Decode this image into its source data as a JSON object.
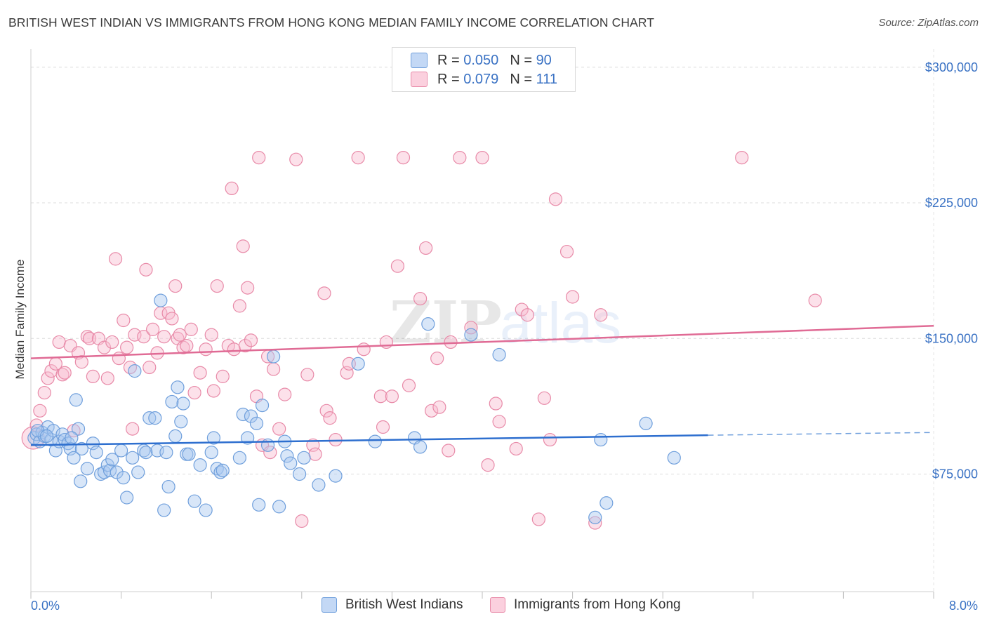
{
  "title": "BRITISH WEST INDIAN VS IMMIGRANTS FROM HONG KONG MEDIAN FAMILY INCOME CORRELATION CHART",
  "source": "Source: ZipAtlas.com",
  "watermark": {
    "part1": "ZIP",
    "part2": "atlas"
  },
  "legend_stats": [
    {
      "r_label": "R =",
      "r_value": "0.050",
      "n_label": "N =",
      "n_value": "90",
      "color": "#a9c8f0",
      "border": "#6f9fdc"
    },
    {
      "r_label": "R =",
      "r_value": "0.079",
      "n_label": "N =",
      "n_value": "111",
      "color": "#f8bcd0",
      "border": "#e88aa8"
    }
  ],
  "chart_data": {
    "type": "scatter",
    "title": "BRITISH WEST INDIAN VS IMMIGRANTS FROM HONG KONG MEDIAN FAMILY INCOME CORRELATION CHART",
    "xlabel": "",
    "ylabel": "Median Family Income",
    "xlim": [
      0,
      8
    ],
    "ylim": [
      10000,
      310000
    ],
    "x_tick_labels": [
      "0.0%",
      "8.0%"
    ],
    "y_ticks": [
      75000,
      150000,
      225000,
      300000
    ],
    "y_tick_labels": [
      "$75,000",
      "$150,000",
      "$225,000",
      "$300,000"
    ],
    "grid": true,
    "legend_placement": "bottom",
    "series": [
      {
        "name": "British West Indians",
        "color": "#6f9fdc",
        "fill": "#a9c8f0",
        "trend": {
          "x": [
            0,
            6.0
          ],
          "y": [
            91000,
            96500
          ],
          "dashed_to": [
            8.0,
            98000
          ]
        },
        "points": [
          [
            0.03,
            95000
          ],
          [
            0.05,
            97000
          ],
          [
            0.08,
            93000
          ],
          [
            0.1,
            98000
          ],
          [
            0.12,
            96000
          ],
          [
            0.15,
            101000
          ],
          [
            0.18,
            94000
          ],
          [
            0.2,
            99000
          ],
          [
            0.22,
            88000
          ],
          [
            0.25,
            93000
          ],
          [
            0.28,
            97000
          ],
          [
            0.3,
            94000
          ],
          [
            0.33,
            92000
          ],
          [
            0.35,
            89000
          ],
          [
            0.38,
            84000
          ],
          [
            0.4,
            116000
          ],
          [
            0.42,
            100000
          ],
          [
            0.45,
            89000
          ],
          [
            0.5,
            78000
          ],
          [
            0.55,
            92000
          ],
          [
            0.58,
            87000
          ],
          [
            0.62,
            75000
          ],
          [
            0.65,
            76000
          ],
          [
            0.68,
            80000
          ],
          [
            0.7,
            77000
          ],
          [
            0.72,
            83000
          ],
          [
            0.76,
            76000
          ],
          [
            0.8,
            88000
          ],
          [
            0.82,
            73000
          ],
          [
            0.85,
            62000
          ],
          [
            0.9,
            84000
          ],
          [
            0.92,
            132000
          ],
          [
            0.95,
            76000
          ],
          [
            1.0,
            88000
          ],
          [
            1.02,
            87000
          ],
          [
            1.05,
            106000
          ],
          [
            1.1,
            106000
          ],
          [
            1.12,
            88000
          ],
          [
            1.15,
            171000
          ],
          [
            1.18,
            55000
          ],
          [
            1.2,
            87000
          ],
          [
            1.22,
            68000
          ],
          [
            1.25,
            115000
          ],
          [
            1.28,
            96000
          ],
          [
            1.3,
            123000
          ],
          [
            1.33,
            104000
          ],
          [
            1.35,
            114000
          ],
          [
            1.38,
            86000
          ],
          [
            1.4,
            86000
          ],
          [
            1.45,
            60000
          ],
          [
            1.5,
            80000
          ],
          [
            1.55,
            55000
          ],
          [
            1.6,
            87000
          ],
          [
            1.62,
            95000
          ],
          [
            1.65,
            78000
          ],
          [
            1.68,
            76000
          ],
          [
            1.7,
            77000
          ],
          [
            1.85,
            84000
          ],
          [
            1.88,
            108000
          ],
          [
            1.92,
            95000
          ],
          [
            1.95,
            107000
          ],
          [
            2.0,
            103000
          ],
          [
            2.02,
            58000
          ],
          [
            2.05,
            113000
          ],
          [
            2.1,
            91000
          ],
          [
            2.15,
            140000
          ],
          [
            2.2,
            57000
          ],
          [
            2.25,
            93000
          ],
          [
            2.27,
            85000
          ],
          [
            2.3,
            81000
          ],
          [
            2.38,
            75000
          ],
          [
            2.42,
            84000
          ],
          [
            2.55,
            69000
          ],
          [
            2.7,
            74000
          ],
          [
            2.9,
            136000
          ],
          [
            3.05,
            93000
          ],
          [
            3.4,
            95000
          ],
          [
            3.45,
            90000
          ],
          [
            3.52,
            158000
          ],
          [
            3.9,
            152000
          ],
          [
            4.15,
            141000
          ],
          [
            5.0,
            51000
          ],
          [
            5.05,
            94000
          ],
          [
            5.1,
            59000
          ],
          [
            5.45,
            103000
          ],
          [
            5.7,
            84000
          ],
          [
            0.06,
            99000
          ],
          [
            0.14,
            96000
          ],
          [
            0.36,
            95000
          ],
          [
            0.44,
            71000
          ]
        ]
      },
      {
        "name": "Immigrants from Hong Kong",
        "color": "#e88aa8",
        "fill": "#f8bcd0",
        "trend": {
          "x": [
            0,
            8.0
          ],
          "y": [
            139000,
            157000
          ]
        },
        "points": [
          [
            0.02,
            95000
          ],
          [
            0.05,
            102000
          ],
          [
            0.08,
            110000
          ],
          [
            0.12,
            120000
          ],
          [
            0.15,
            128000
          ],
          [
            0.18,
            132000
          ],
          [
            0.22,
            136000
          ],
          [
            0.25,
            148000
          ],
          [
            0.28,
            130000
          ],
          [
            0.3,
            131000
          ],
          [
            0.35,
            146000
          ],
          [
            0.38,
            99000
          ],
          [
            0.42,
            142000
          ],
          [
            0.45,
            137000
          ],
          [
            0.5,
            151000
          ],
          [
            0.52,
            150000
          ],
          [
            0.55,
            129000
          ],
          [
            0.6,
            150000
          ],
          [
            0.65,
            145000
          ],
          [
            0.68,
            128000
          ],
          [
            0.72,
            148000
          ],
          [
            0.75,
            194000
          ],
          [
            0.78,
            139000
          ],
          [
            0.82,
            160000
          ],
          [
            0.85,
            145000
          ],
          [
            0.88,
            134000
          ],
          [
            0.9,
            100000
          ],
          [
            0.92,
            152000
          ],
          [
            1.0,
            151000
          ],
          [
            1.02,
            188000
          ],
          [
            1.05,
            134000
          ],
          [
            1.08,
            155000
          ],
          [
            1.12,
            142000
          ],
          [
            1.15,
            164000
          ],
          [
            1.18,
            151000
          ],
          [
            1.22,
            164000
          ],
          [
            1.25,
            161000
          ],
          [
            1.28,
            179000
          ],
          [
            1.3,
            150000
          ],
          [
            1.32,
            152000
          ],
          [
            1.35,
            145000
          ],
          [
            1.38,
            146000
          ],
          [
            1.42,
            155000
          ],
          [
            1.45,
            120000
          ],
          [
            1.5,
            131000
          ],
          [
            1.55,
            144000
          ],
          [
            1.6,
            152000
          ],
          [
            1.62,
            121000
          ],
          [
            1.65,
            179000
          ],
          [
            1.7,
            129000
          ],
          [
            1.75,
            146000
          ],
          [
            1.78,
            233000
          ],
          [
            1.8,
            144000
          ],
          [
            1.85,
            168000
          ],
          [
            1.88,
            201000
          ],
          [
            1.9,
            146000
          ],
          [
            1.92,
            178000
          ],
          [
            1.95,
            149000
          ],
          [
            2.0,
            118000
          ],
          [
            2.02,
            250000
          ],
          [
            2.05,
            91000
          ],
          [
            2.1,
            140000
          ],
          [
            2.12,
            87000
          ],
          [
            2.15,
            133000
          ],
          [
            2.2,
            100000
          ],
          [
            2.25,
            119000
          ],
          [
            2.35,
            249000
          ],
          [
            2.4,
            49000
          ],
          [
            2.45,
            130000
          ],
          [
            2.5,
            91000
          ],
          [
            2.52,
            86000
          ],
          [
            2.6,
            175000
          ],
          [
            2.62,
            110000
          ],
          [
            2.65,
            106000
          ],
          [
            2.7,
            94000
          ],
          [
            2.8,
            131000
          ],
          [
            2.82,
            136000
          ],
          [
            2.9,
            250000
          ],
          [
            2.95,
            144000
          ],
          [
            3.1,
            118000
          ],
          [
            3.12,
            101000
          ],
          [
            3.15,
            148000
          ],
          [
            3.2,
            118000
          ],
          [
            3.25,
            190000
          ],
          [
            3.3,
            250000
          ],
          [
            3.35,
            124000
          ],
          [
            3.45,
            172000
          ],
          [
            3.5,
            200000
          ],
          [
            3.55,
            110000
          ],
          [
            3.6,
            139000
          ],
          [
            3.62,
            112000
          ],
          [
            3.7,
            88000
          ],
          [
            3.72,
            148000
          ],
          [
            3.8,
            250000
          ],
          [
            3.9,
            156000
          ],
          [
            4.0,
            250000
          ],
          [
            4.05,
            80000
          ],
          [
            4.12,
            114000
          ],
          [
            4.15,
            104000
          ],
          [
            4.3,
            89000
          ],
          [
            4.35,
            166000
          ],
          [
            4.4,
            163000
          ],
          [
            4.5,
            50000
          ],
          [
            4.55,
            117000
          ],
          [
            4.6,
            94000
          ],
          [
            4.65,
            227000
          ],
          [
            4.75,
            198000
          ],
          [
            4.8,
            173000
          ],
          [
            5.0,
            48000
          ],
          [
            5.05,
            163000
          ],
          [
            6.3,
            250000
          ],
          [
            6.95,
            171000
          ]
        ]
      }
    ]
  }
}
